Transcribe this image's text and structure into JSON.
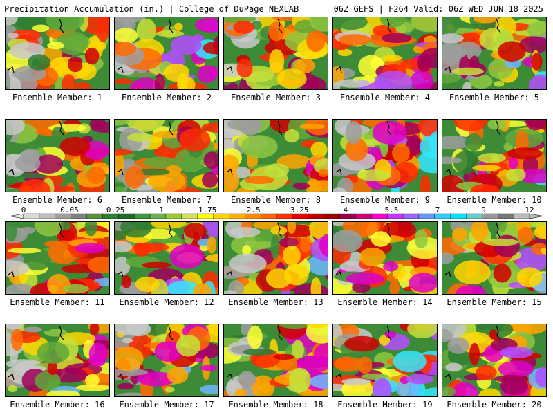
{
  "header": {
    "left_title": "Precipitation Accumulation (in.) | College of DuPage NEXLAB",
    "right_title": "06Z GEFS | F264 Valid: 06Z WED JUN 18 2025"
  },
  "members": [
    {
      "label": "Ensemble Member: 1",
      "seed": 11,
      "wet": 0.35
    },
    {
      "label": "Ensemble Member: 2",
      "seed": 22,
      "wet": 0.55
    },
    {
      "label": "Ensemble Member: 3",
      "seed": 33,
      "wet": 0.45
    },
    {
      "label": "Ensemble Member: 4",
      "seed": 44,
      "wet": 0.5
    },
    {
      "label": "Ensemble Member: 5",
      "seed": 55,
      "wet": 0.5
    },
    {
      "label": "Ensemble Member: 6",
      "seed": 66,
      "wet": 0.35
    },
    {
      "label": "Ensemble Member: 7",
      "seed": 77,
      "wet": 0.3
    },
    {
      "label": "Ensemble Member: 8",
      "seed": 88,
      "wet": 0.4
    },
    {
      "label": "Ensemble Member: 9",
      "seed": 99,
      "wet": 0.6
    },
    {
      "label": "Ensemble Member: 10",
      "seed": 110,
      "wet": 0.45
    },
    {
      "label": "Ensemble Member: 11",
      "seed": 121,
      "wet": 0.35
    },
    {
      "label": "Ensemble Member: 12",
      "seed": 132,
      "wet": 0.55
    },
    {
      "label": "Ensemble Member: 13",
      "seed": 143,
      "wet": 0.4
    },
    {
      "label": "Ensemble Member: 14",
      "seed": 154,
      "wet": 0.5
    },
    {
      "label": "Ensemble Member: 15",
      "seed": 165,
      "wet": 0.45
    },
    {
      "label": "Ensemble Member: 16",
      "seed": 176,
      "wet": 0.45
    },
    {
      "label": "Ensemble Member: 17",
      "seed": 187,
      "wet": 0.55
    },
    {
      "label": "Ensemble Member: 18",
      "seed": 198,
      "wet": 0.45
    },
    {
      "label": "Ensemble Member: 19",
      "seed": 209,
      "wet": 0.65
    },
    {
      "label": "Ensemble Member: 20",
      "seed": 220,
      "wet": 0.5
    }
  ],
  "colorbar": {
    "tick_labels": [
      "0",
      "0.05",
      "0.25",
      "1",
      "1.75",
      "2.5",
      "3.25",
      "4",
      "5.5",
      "7",
      "9",
      "12"
    ],
    "colors": [
      "#d9d9d9",
      "#bdbdbd",
      "#a0a0a0",
      "#808080",
      "#5b8f3b",
      "#2e7d32",
      "#1f6b24",
      "#3a9a3a",
      "#6ab04c",
      "#9acd32",
      "#d4e157",
      "#ffff00",
      "#ffd700",
      "#ffb300",
      "#ff8c00",
      "#ff6600",
      "#ff3300",
      "#e60000",
      "#c00000",
      "#990000",
      "#99004d",
      "#cc0077",
      "#ff00cc",
      "#cc33ff",
      "#9966ff",
      "#6699ff",
      "#33ccff",
      "#00e5ff",
      "#66cccc",
      "#999999",
      "#777777",
      "#bbbbbb"
    ]
  }
}
